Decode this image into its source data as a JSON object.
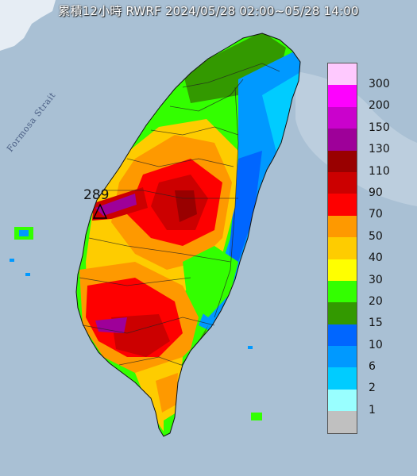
{
  "title": "累積12小時 RWRF 2024/05/28 02:00~05/28 14:00",
  "strait_label": "Formosa Strait",
  "max_value_label": "289",
  "legend": {
    "levels": [
      {
        "label": "300",
        "color": "#fec9fe"
      },
      {
        "label": "200",
        "color": "#fd02fe"
      },
      {
        "label": "150",
        "color": "#ca02cc"
      },
      {
        "label": "130",
        "color": "#9e0099"
      },
      {
        "label": "110",
        "color": "#990000"
      },
      {
        "label": "90",
        "color": "#cc0000"
      },
      {
        "label": "70",
        "color": "#fe0000"
      },
      {
        "label": "50",
        "color": "#fe9900"
      },
      {
        "label": "40",
        "color": "#fecc00"
      },
      {
        "label": "30",
        "color": "#ffff00"
      },
      {
        "label": "20",
        "color": "#33ff00"
      },
      {
        "label": "15",
        "color": "#339900"
      },
      {
        "label": "10",
        "color": "#0066ff"
      },
      {
        "label": "6",
        "color": "#0099ff"
      },
      {
        "label": "2",
        "color": "#00ccff"
      },
      {
        "label": "1",
        "color": "#99ffff"
      },
      {
        "label": "",
        "color": "#c0c0c0"
      }
    ]
  }
}
